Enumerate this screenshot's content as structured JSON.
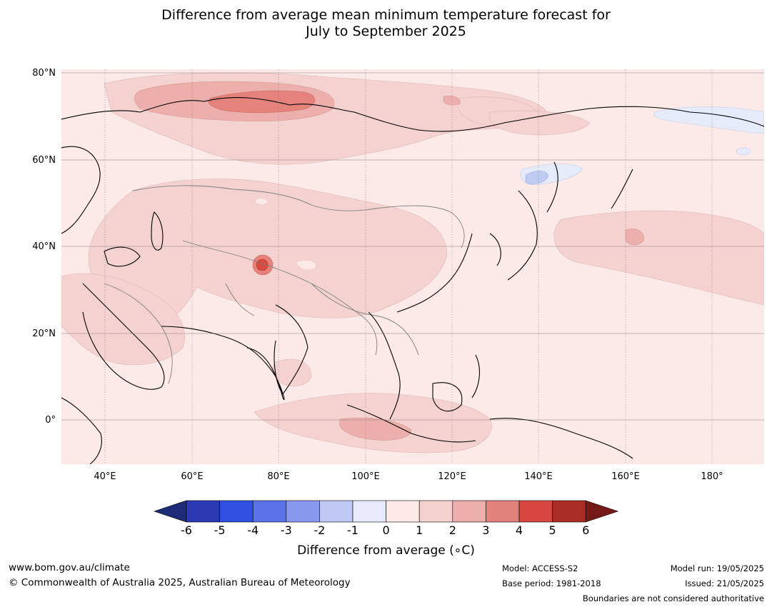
{
  "title": {
    "line1": "Difference from average mean minimum temperature forecast for",
    "line2": "July to September 2025"
  },
  "map": {
    "lat_labels": [
      "80°N",
      "60°N",
      "40°N",
      "20°N",
      "0°"
    ],
    "lon_labels": [
      "40°E",
      "60°E",
      "80°E",
      "100°E",
      "120°E",
      "140°E",
      "160°E",
      "180°"
    ],
    "colors": {
      "ocean_base": "#fbeae8",
      "anomaly_1_2": "#f4d2d0",
      "anomaly_2_3": "#edafab",
      "anomaly_3_4": "#e4827b",
      "anomaly_4_5": "#d64a40",
      "anomaly_neg_0_1": "#e6ebfa",
      "anomaly_neg_1_2": "#c0cbf2",
      "coastline": "#000000",
      "border": "#808080",
      "gridline": "#8a7a80"
    }
  },
  "colorbar": {
    "ticks": [
      "-6",
      "-5",
      "-4",
      "-3",
      "-2",
      "-1",
      "0",
      "1",
      "2",
      "3",
      "4",
      "5",
      "6"
    ],
    "colors": [
      "#1e2b78",
      "#2a3ab0",
      "#3050e0",
      "#5a72e6",
      "#8898ec",
      "#c0c8f4",
      "#e8ebfb",
      "#fde9e8",
      "#f4d0ce",
      "#ebaeaa",
      "#e2827c",
      "#d5473f",
      "#a92b25",
      "#761a17"
    ],
    "label": "Difference from average (∘C)"
  },
  "footer": {
    "url": "www.bom.gov.au/climate",
    "copyright": "© Commonwealth of Australia 2025, Australian Bureau of Meteorology",
    "model": "Model: ACCESS-S2",
    "base_period": "Base period: 1981-2018",
    "model_run": "Model run: 19/05/2025",
    "issued": "Issued: 21/05/2025",
    "disclaimer": "Boundaries are not considered authoritative"
  }
}
